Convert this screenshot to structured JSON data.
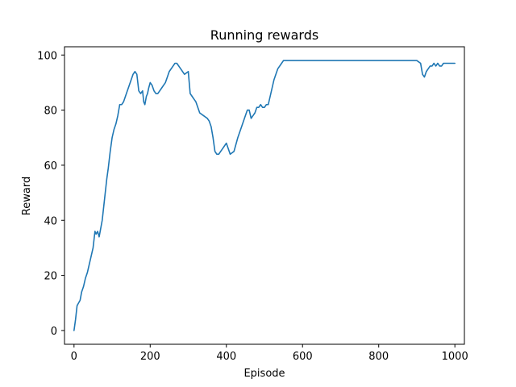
{
  "chart_data": {
    "type": "line",
    "title": "Running rewards",
    "xlabel": "Episode",
    "ylabel": "Reward",
    "xlim": [
      -25,
      1025
    ],
    "ylim": [
      -5,
      103
    ],
    "xticks": [
      0,
      200,
      400,
      600,
      800,
      1000
    ],
    "yticks": [
      0,
      20,
      40,
      60,
      80,
      100
    ],
    "grid": false,
    "legend": "none",
    "series": [
      {
        "color": "#1f77b4",
        "x": [
          0,
          4,
          8,
          12,
          16,
          20,
          25,
          30,
          35,
          40,
          45,
          50,
          55,
          58,
          62,
          66,
          70,
          74,
          78,
          82,
          86,
          90,
          95,
          100,
          105,
          110,
          115,
          120,
          125,
          130,
          135,
          140,
          145,
          150,
          155,
          160,
          165,
          170,
          175,
          180,
          183,
          186,
          190,
          193,
          196,
          200,
          205,
          210,
          215,
          220,
          225,
          230,
          235,
          240,
          245,
          250,
          255,
          260,
          265,
          270,
          280,
          290,
          300,
          305,
          310,
          315,
          320,
          330,
          340,
          350,
          355,
          360,
          365,
          370,
          375,
          380,
          385,
          390,
          395,
          400,
          405,
          410,
          420,
          430,
          440,
          450,
          455,
          460,
          465,
          470,
          475,
          480,
          485,
          490,
          495,
          500,
          505,
          510,
          515,
          520,
          525,
          530,
          535,
          540,
          545,
          550,
          555,
          560,
          570,
          580,
          590,
          600,
          610,
          620,
          630,
          640,
          660,
          680,
          700,
          750,
          800,
          850,
          900,
          910,
          915,
          920,
          925,
          930,
          935,
          940,
          945,
          950,
          955,
          960,
          965,
          970,
          975,
          980,
          985,
          990,
          995,
          1000
        ],
        "values": [
          0,
          4,
          9,
          10,
          11,
          14,
          16,
          19,
          21,
          24,
          27,
          30,
          36,
          35,
          36,
          34,
          37,
          40,
          45,
          50,
          55,
          59,
          65,
          70,
          73,
          75,
          78,
          82,
          82,
          83,
          85,
          87,
          89,
          91,
          93,
          94,
          93,
          87,
          86,
          87,
          83,
          82,
          85,
          86,
          88,
          90,
          89,
          87,
          86,
          86,
          87,
          88,
          89,
          90,
          92,
          94,
          95,
          96,
          97,
          97,
          95,
          93,
          94,
          86,
          85,
          84,
          83,
          79,
          78,
          77,
          76,
          74,
          70,
          65,
          64,
          64,
          65,
          66,
          67,
          68,
          66,
          64,
          65,
          70,
          74,
          78,
          80,
          80,
          77,
          78,
          79,
          81,
          81,
          82,
          81,
          81,
          82,
          82,
          85,
          88,
          91,
          93,
          95,
          96,
          97,
          98,
          98,
          98,
          98,
          98,
          98,
          98,
          98,
          98,
          98,
          98,
          98,
          98,
          98,
          98,
          98,
          98,
          98,
          97,
          93,
          92,
          94,
          95,
          96,
          96,
          97,
          96,
          97,
          96,
          96,
          97,
          97,
          97,
          97,
          97,
          97,
          97
        ]
      }
    ]
  }
}
